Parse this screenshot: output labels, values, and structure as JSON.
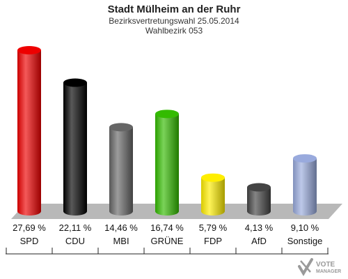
{
  "header": {
    "title": "Stadt Mülheim an der Ruhr",
    "subtitle": "Bezirksvertretungswahl 25.05.2014",
    "district": "Wahlbezirk 053"
  },
  "chart_data": {
    "type": "bar",
    "categories": [
      "SPD",
      "CDU",
      "MBI",
      "GRÜNE",
      "FDP",
      "AfD",
      "Sonstige"
    ],
    "values": [
      27.69,
      22.11,
      14.46,
      16.74,
      5.79,
      4.13,
      9.1
    ],
    "value_labels": [
      "27,69 %",
      "22,11 %",
      "14,46 %",
      "16,74 %",
      "5,79 %",
      "4,13 %",
      "9,10 %"
    ],
    "colors": [
      "#ee0000",
      "#000000",
      "#666666",
      "#33bb00",
      "#ffee00",
      "#444444",
      "#99aadd"
    ],
    "ylim": [
      0,
      30
    ]
  },
  "logo": {
    "line1": "VOTE",
    "line2": "MANAGER"
  }
}
